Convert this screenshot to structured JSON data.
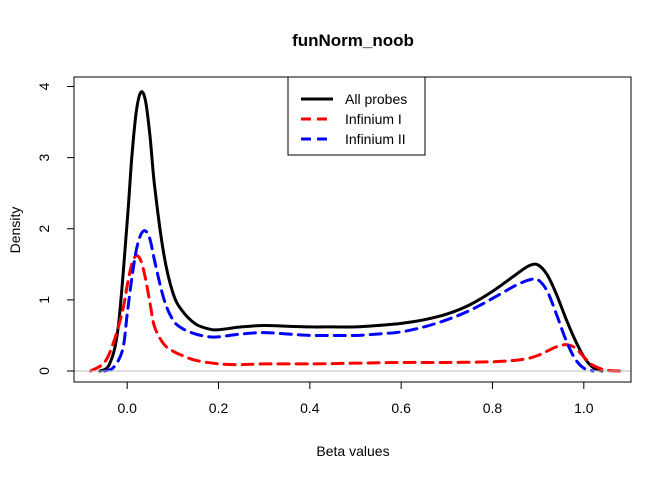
{
  "chart_data": {
    "type": "line",
    "title": "funNorm_noob",
    "xlabel": "Beta values",
    "ylabel": "Density",
    "xlim": [
      -0.1,
      1.1
    ],
    "ylim": [
      0,
      4
    ],
    "x_ticks": [
      0.0,
      0.2,
      0.4,
      0.6,
      0.8,
      1.0
    ],
    "x_tick_labels": [
      "0.0",
      "0.2",
      "0.4",
      "0.6",
      "0.8",
      "1.0"
    ],
    "y_ticks": [
      0,
      1,
      2,
      3,
      4
    ],
    "y_tick_labels": [
      "0",
      "1",
      "2",
      "3",
      "4"
    ],
    "baseline": 0,
    "baseline_color": "#bebebe",
    "grid": false,
    "legend_position": "top-center",
    "series": [
      {
        "name": "All probes",
        "color": "#000000",
        "line_style": "solid",
        "x": [
          -0.06,
          -0.04,
          -0.02,
          0.0,
          0.01,
          0.02,
          0.03,
          0.04,
          0.05,
          0.06,
          0.08,
          0.1,
          0.12,
          0.15,
          0.18,
          0.2,
          0.25,
          0.3,
          0.35,
          0.4,
          0.45,
          0.5,
          0.55,
          0.6,
          0.65,
          0.7,
          0.75,
          0.8,
          0.85,
          0.88,
          0.9,
          0.92,
          0.94,
          0.96,
          0.98,
          1.0,
          1.02,
          1.04
        ],
        "y": [
          0.0,
          0.08,
          0.6,
          2.1,
          3.0,
          3.65,
          3.92,
          3.8,
          3.3,
          2.6,
          1.65,
          1.1,
          0.85,
          0.66,
          0.59,
          0.58,
          0.62,
          0.64,
          0.63,
          0.62,
          0.62,
          0.62,
          0.64,
          0.67,
          0.72,
          0.8,
          0.93,
          1.12,
          1.35,
          1.48,
          1.49,
          1.35,
          1.08,
          0.75,
          0.45,
          0.2,
          0.05,
          0.0
        ]
      },
      {
        "name": "Infinium I",
        "color": "#ff0000",
        "line_style": "dashed",
        "x": [
          -0.08,
          -0.05,
          -0.03,
          -0.01,
          0.0,
          0.01,
          0.02,
          0.03,
          0.04,
          0.05,
          0.06,
          0.08,
          0.1,
          0.12,
          0.15,
          0.2,
          0.25,
          0.3,
          0.4,
          0.5,
          0.6,
          0.7,
          0.8,
          0.85,
          0.88,
          0.9,
          0.92,
          0.94,
          0.96,
          0.98,
          1.0,
          1.02,
          1.05,
          1.08
        ],
        "y": [
          0.0,
          0.12,
          0.4,
          0.85,
          1.2,
          1.5,
          1.62,
          1.55,
          1.3,
          0.95,
          0.62,
          0.38,
          0.28,
          0.22,
          0.15,
          0.1,
          0.09,
          0.1,
          0.1,
          0.11,
          0.12,
          0.12,
          0.13,
          0.15,
          0.18,
          0.22,
          0.28,
          0.34,
          0.37,
          0.33,
          0.2,
          0.08,
          0.01,
          0.0
        ]
      },
      {
        "name": "Infinium II",
        "color": "#0000ff",
        "line_style": "dashed",
        "x": [
          -0.05,
          -0.03,
          -0.01,
          0.0,
          0.01,
          0.02,
          0.03,
          0.04,
          0.05,
          0.06,
          0.08,
          0.1,
          0.12,
          0.15,
          0.18,
          0.2,
          0.25,
          0.3,
          0.35,
          0.4,
          0.45,
          0.5,
          0.55,
          0.6,
          0.65,
          0.7,
          0.75,
          0.8,
          0.85,
          0.88,
          0.9,
          0.92,
          0.94,
          0.96,
          0.98,
          1.0,
          1.02
        ],
        "y": [
          0.0,
          0.05,
          0.3,
          0.8,
          1.3,
          1.7,
          1.92,
          1.97,
          1.85,
          1.55,
          1.02,
          0.72,
          0.6,
          0.52,
          0.48,
          0.48,
          0.52,
          0.54,
          0.52,
          0.5,
          0.5,
          0.5,
          0.52,
          0.55,
          0.62,
          0.72,
          0.85,
          1.02,
          1.2,
          1.28,
          1.28,
          1.12,
          0.8,
          0.45,
          0.18,
          0.04,
          0.0
        ]
      }
    ]
  }
}
